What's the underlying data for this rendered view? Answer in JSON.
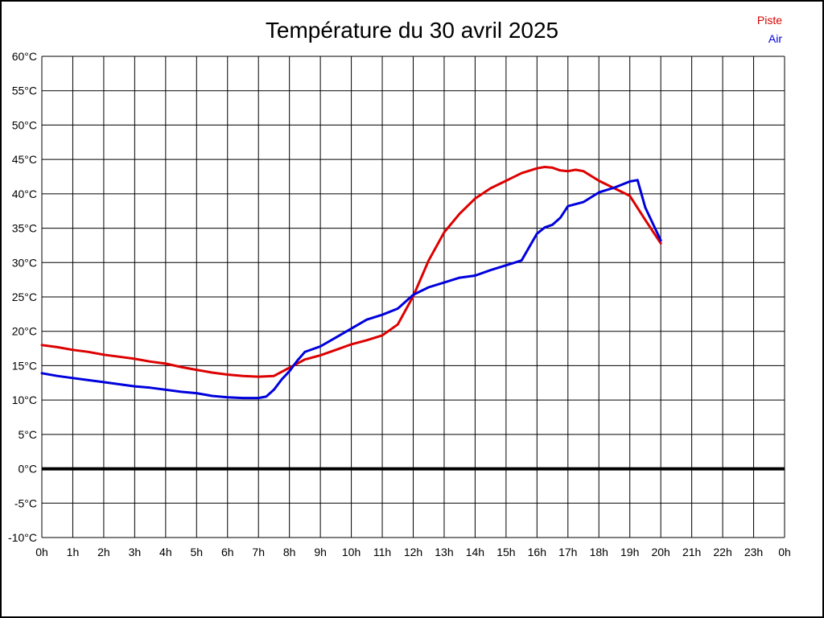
{
  "title": "Température du 30 avril 2025",
  "legend": [
    {
      "label": "Piste",
      "color": "#dd0000"
    },
    {
      "label": "Air",
      "color": "#0000dd"
    }
  ],
  "colors": {
    "grid": "#000000",
    "zero_line": "#000000",
    "background": "#ffffff",
    "piste": "#dd0000",
    "air": "#0000dd"
  },
  "chart_data": {
    "type": "line",
    "title": "Température du 30 avril 2025",
    "xlabel": "",
    "ylabel": "",
    "xlim": [
      0,
      24
    ],
    "ylim": [
      -10,
      60
    ],
    "x_tick_step_hours": 1,
    "y_tick_step_degrees": 5,
    "x_tick_labels": [
      "0h",
      "1h",
      "2h",
      "3h",
      "4h",
      "5h",
      "6h",
      "7h",
      "8h",
      "9h",
      "10h",
      "11h",
      "12h",
      "13h",
      "14h",
      "15h",
      "16h",
      "17h",
      "18h",
      "19h",
      "20h",
      "21h",
      "22h",
      "23h",
      "0h"
    ],
    "y_tick_labels": [
      "60°C",
      "55°C",
      "50°C",
      "45°C",
      "40°C",
      "35°C",
      "30°C",
      "25°C",
      "20°C",
      "15°C",
      "10°C",
      "5°C",
      "0°C",
      "-5°C",
      "-10°C"
    ],
    "y_tick_values": [
      60,
      55,
      50,
      45,
      40,
      35,
      30,
      25,
      20,
      15,
      10,
      5,
      0,
      -5,
      -10
    ],
    "grid": true,
    "zero_line_value": 0,
    "legend_position": "top-right",
    "series": [
      {
        "name": "Piste",
        "color": "#dd0000",
        "line_width": 3,
        "points": [
          [
            0,
            18.0
          ],
          [
            0.5,
            17.7
          ],
          [
            1,
            17.3
          ],
          [
            1.5,
            17.0
          ],
          [
            2,
            16.6
          ],
          [
            2.5,
            16.3
          ],
          [
            3,
            16.0
          ],
          [
            3.5,
            15.6
          ],
          [
            4,
            15.3
          ],
          [
            4.5,
            14.8
          ],
          [
            5,
            14.4
          ],
          [
            5.5,
            14.0
          ],
          [
            6,
            13.7
          ],
          [
            6.5,
            13.5
          ],
          [
            7,
            13.4
          ],
          [
            7.5,
            13.5
          ],
          [
            8,
            14.7
          ],
          [
            8.5,
            15.9
          ],
          [
            9,
            16.5
          ],
          [
            9.5,
            17.3
          ],
          [
            10,
            18.1
          ],
          [
            10.5,
            18.7
          ],
          [
            11,
            19.4
          ],
          [
            11.5,
            21.0
          ],
          [
            12,
            25.1
          ],
          [
            12.5,
            30.3
          ],
          [
            13,
            34.4
          ],
          [
            13.5,
            37.1
          ],
          [
            14,
            39.3
          ],
          [
            14.5,
            40.8
          ],
          [
            15,
            41.9
          ],
          [
            15.5,
            43.0
          ],
          [
            16,
            43.7
          ],
          [
            16.25,
            43.9
          ],
          [
            16.5,
            43.8
          ],
          [
            16.75,
            43.4
          ],
          [
            17,
            43.3
          ],
          [
            17.25,
            43.5
          ],
          [
            17.5,
            43.3
          ],
          [
            18,
            41.9
          ],
          [
            18.5,
            40.8
          ],
          [
            19,
            39.7
          ],
          [
            19.5,
            36.2
          ],
          [
            20,
            32.8
          ]
        ]
      },
      {
        "name": "Air",
        "color": "#0000dd",
        "line_width": 3,
        "points": [
          [
            0,
            13.9
          ],
          [
            0.5,
            13.5
          ],
          [
            1,
            13.2
          ],
          [
            1.5,
            12.9
          ],
          [
            2,
            12.6
          ],
          [
            2.5,
            12.3
          ],
          [
            3,
            12.0
          ],
          [
            3.5,
            11.8
          ],
          [
            4,
            11.5
          ],
          [
            4.5,
            11.2
          ],
          [
            5,
            11.0
          ],
          [
            5.5,
            10.6
          ],
          [
            6,
            10.4
          ],
          [
            6.5,
            10.3
          ],
          [
            7,
            10.3
          ],
          [
            7.25,
            10.5
          ],
          [
            7.5,
            11.5
          ],
          [
            7.75,
            13.0
          ],
          [
            8,
            14.2
          ],
          [
            8.25,
            15.7
          ],
          [
            8.5,
            17.0
          ],
          [
            9,
            17.8
          ],
          [
            9.5,
            19.1
          ],
          [
            10,
            20.4
          ],
          [
            10.5,
            21.7
          ],
          [
            11,
            22.4
          ],
          [
            11.5,
            23.3
          ],
          [
            12,
            25.3
          ],
          [
            12.5,
            26.4
          ],
          [
            13,
            27.1
          ],
          [
            13.5,
            27.8
          ],
          [
            14,
            28.1
          ],
          [
            14.5,
            28.9
          ],
          [
            15,
            29.6
          ],
          [
            15.5,
            30.3
          ],
          [
            16,
            34.2
          ],
          [
            16.25,
            35.1
          ],
          [
            16.5,
            35.5
          ],
          [
            16.75,
            36.5
          ],
          [
            17,
            38.2
          ],
          [
            17.5,
            38.8
          ],
          [
            18,
            40.2
          ],
          [
            18.5,
            40.9
          ],
          [
            19,
            41.8
          ],
          [
            19.25,
            42.0
          ],
          [
            19.5,
            38.0
          ],
          [
            20,
            33.2
          ]
        ]
      }
    ]
  }
}
